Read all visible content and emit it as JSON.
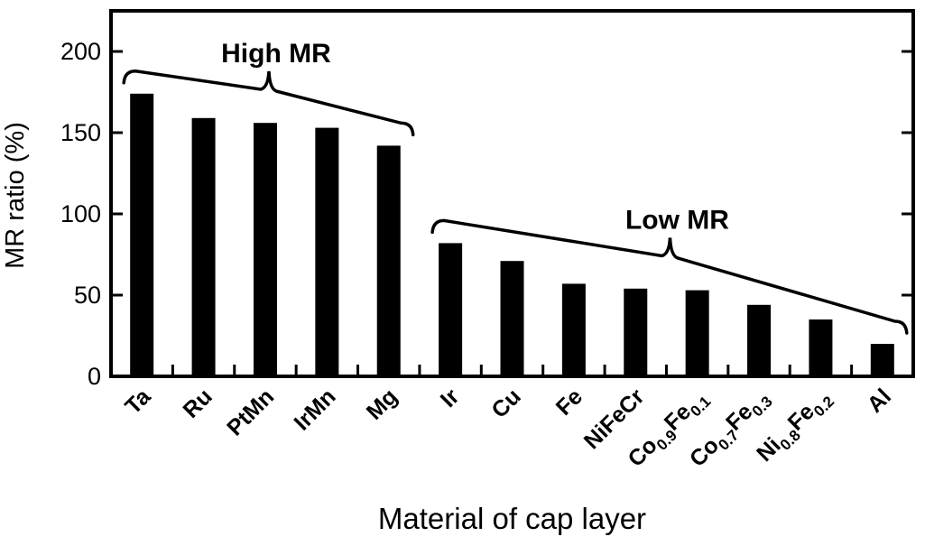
{
  "figure": {
    "background": "#ffffff",
    "ink_color": "#000000"
  },
  "chart_data": {
    "type": "bar",
    "title": "",
    "xlabel": "Material of cap layer",
    "ylabel": "MR ratio (%)",
    "categories": [
      "Ta",
      "Ru",
      "PtMn",
      "IrMn",
      "Mg",
      "Ir",
      "Cu",
      "Fe",
      "NiFeCr",
      "Co_{0.9}Fe_{0.1}",
      "Co_{0.7}Fe_{0.3}",
      "Ni_{0.8}Fe_{0.2}",
      "Al"
    ],
    "values": [
      174,
      159,
      156,
      153,
      142,
      82,
      71,
      57,
      54,
      53,
      44,
      35,
      20
    ],
    "ylim": [
      0,
      225
    ],
    "yticks": [
      0,
      50,
      100,
      150,
      200
    ],
    "grid": false,
    "legend_position": "none",
    "bar_color": "#000000",
    "groups": [
      {
        "label": "High MR",
        "from": 0,
        "to": 4
      },
      {
        "label": "Low MR",
        "from": 5,
        "to": 12
      }
    ]
  }
}
